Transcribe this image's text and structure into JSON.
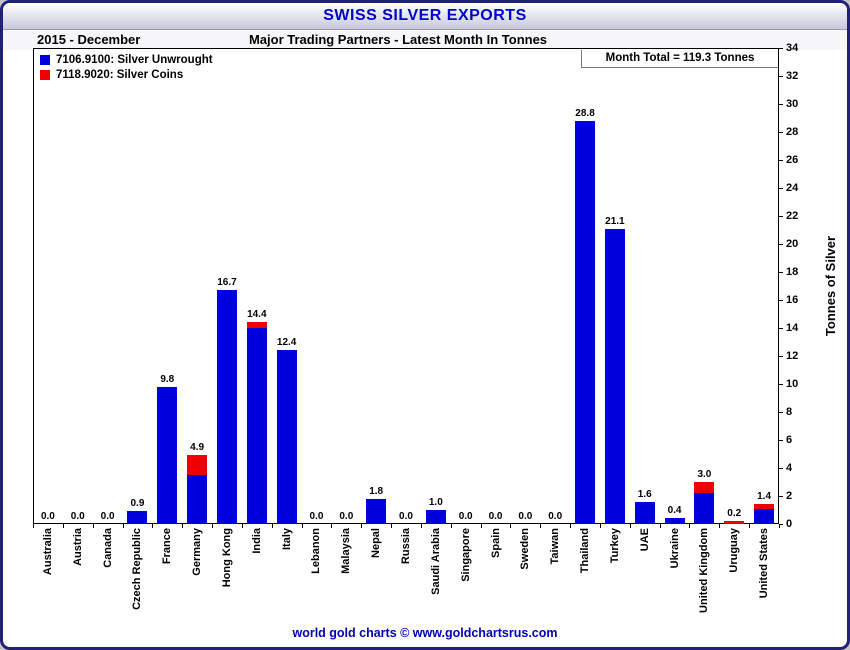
{
  "window": {
    "title": "SWISS SILVER EXPORTS"
  },
  "header": {
    "period": "2015 - December",
    "subtitle": "Major Trading Partners - Latest Month In Tonnes",
    "month_total": "Month Total = 119.3 Tonnes"
  },
  "legend": [
    {
      "label": "7106.9100: Silver Unwrought",
      "color": "#0000dd"
    },
    {
      "label": "7118.9020: Silver Coins",
      "color": "#ee0000"
    }
  ],
  "footer": {
    "credit": "world gold charts © www.goldchartsrus.com"
  },
  "colors": {
    "title_text": "#0000c8",
    "bar_unwrought": "#0000dd",
    "bar_coins": "#ee0000",
    "footer_text": "#0000bb"
  },
  "chart_data": {
    "type": "bar",
    "stacked": true,
    "title": "SWISS SILver EXPORTS",
    "subtitle": "Major Trading Partners - Latest Month In Tonnes",
    "period": "2015 - December",
    "ylabel": "Tonnes of Silver",
    "ylim": [
      0,
      34
    ],
    "ytick_step": 2,
    "grid": false,
    "legend_position": "top-left",
    "month_total_tonnes": 119.3,
    "categories": [
      "Australia",
      "Austria",
      "Canada",
      "Czech Republic",
      "France",
      "Germany",
      "Hong Kong",
      "India",
      "Italy",
      "Lebanon",
      "Malaysia",
      "Nepal",
      "Russia",
      "Saudi Arabia",
      "Singapore",
      "Spain",
      "Sweden",
      "Taiwan",
      "Thailand",
      "Turkey",
      "UAE",
      "Ukraine",
      "United Kingdom",
      "Uruguay",
      "United States"
    ],
    "series": [
      {
        "name": "7106.9100: Silver Unwrought",
        "color": "#0000dd",
        "values": [
          0,
          0,
          0,
          0.9,
          9.8,
          3.5,
          16.7,
          14.0,
          12.4,
          0,
          0,
          1.8,
          0,
          1.0,
          0,
          0,
          0,
          0,
          28.8,
          21.1,
          1.6,
          0.4,
          2.2,
          0,
          1.1
        ]
      },
      {
        "name": "7118.9020: Silver Coins",
        "color": "#ee0000",
        "values": [
          0,
          0,
          0,
          0,
          0,
          1.4,
          0,
          0.4,
          0,
          0,
          0,
          0,
          0,
          0,
          0,
          0,
          0,
          0,
          0,
          0,
          0,
          0,
          0.8,
          0.2,
          0.3
        ]
      }
    ],
    "totals_labels": [
      "0.0",
      "0.0",
      "0.0",
      "0.9",
      "9.8",
      "4.9",
      "16.7",
      "14.4",
      "12.4",
      "0.0",
      "0.0",
      "1.8",
      "0.0",
      "1.0",
      "0.0",
      "0.0",
      "0.0",
      "0.0",
      "28.8",
      "21.1",
      "1.6",
      "0.4",
      "3.0",
      "0.2",
      "1.4"
    ]
  }
}
